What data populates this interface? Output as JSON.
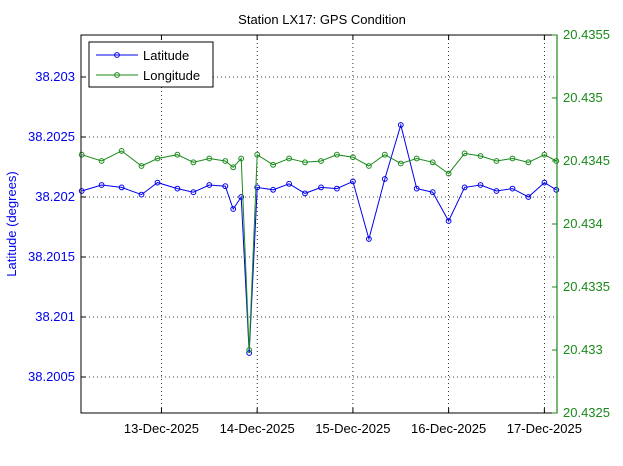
{
  "chart_data": {
    "type": "line",
    "title": "Station LX17: GPS Condition",
    "ylabel_left": "Latitude (degrees)",
    "ylabel_right": "",
    "xlim": [
      "2025-12-12T03:50",
      "2025-12-17T03:10"
    ],
    "x_ticks": [
      "13-Dec-2025",
      "14-Dec-2025",
      "15-Dec-2025",
      "16-Dec-2025",
      "17-Dec-2025"
    ],
    "x_tick_dates": [
      "2025-12-13",
      "2025-12-14",
      "2025-12-15",
      "2025-12-16",
      "2025-12-17"
    ],
    "y_left": {
      "lim": [
        38.2002,
        38.20335
      ],
      "ticks": [
        "38.2005",
        "38.201",
        "38.2015",
        "38.202",
        "38.2025",
        "38.203"
      ],
      "tick_values": [
        38.2005,
        38.201,
        38.2015,
        38.202,
        38.2025,
        38.203
      ],
      "color": "#0000ee"
    },
    "y_right": {
      "lim": [
        20.4325,
        20.4355
      ],
      "ticks": [
        "20.4325",
        "20.433",
        "20.4335",
        "20.434",
        "20.4345",
        "20.435",
        "20.4355"
      ],
      "tick_values": [
        20.4325,
        20.433,
        20.4335,
        20.434,
        20.4345,
        20.435,
        20.4355
      ],
      "color": "#1a8a1a"
    },
    "grid": true,
    "legend": "top-left",
    "series": [
      {
        "name": "Latitude",
        "axis": "left",
        "color": "#0000ee",
        "x": [
          "2025-12-12T04:00",
          "2025-12-12T09:00",
          "2025-12-12T14:00",
          "2025-12-12T19:00",
          "2025-12-12T23:00",
          "2025-12-13T04:00",
          "2025-12-13T08:00",
          "2025-12-13T12:00",
          "2025-12-13T16:00",
          "2025-12-13T18:00",
          "2025-12-13T20:00",
          "2025-12-13T22:00",
          "2025-12-14T00:00",
          "2025-12-14T04:00",
          "2025-12-14T08:00",
          "2025-12-14T12:00",
          "2025-12-14T16:00",
          "2025-12-14T20:00",
          "2025-12-15T00:00",
          "2025-12-15T04:00",
          "2025-12-15T08:00",
          "2025-12-15T12:00",
          "2025-12-15T16:00",
          "2025-12-15T20:00",
          "2025-12-16T00:00",
          "2025-12-16T04:00",
          "2025-12-16T08:00",
          "2025-12-16T12:00",
          "2025-12-16T16:00",
          "2025-12-16T20:00",
          "2025-12-17T00:00",
          "2025-12-17T03:00"
        ],
        "values": [
          38.20205,
          38.2021,
          38.20208,
          38.20202,
          38.20212,
          38.20207,
          38.20204,
          38.2021,
          38.20209,
          38.2019,
          38.202,
          38.2007,
          38.20208,
          38.20206,
          38.20211,
          38.20203,
          38.20208,
          38.20207,
          38.20213,
          38.20165,
          38.20215,
          38.2026,
          38.20207,
          38.20204,
          38.2018,
          38.20208,
          38.2021,
          38.20205,
          38.20207,
          38.202,
          38.20212,
          38.20206
        ]
      },
      {
        "name": "Longitude",
        "axis": "right",
        "color": "#1a8a1a",
        "x": [
          "2025-12-12T04:00",
          "2025-12-12T09:00",
          "2025-12-12T14:00",
          "2025-12-12T19:00",
          "2025-12-12T23:00",
          "2025-12-13T04:00",
          "2025-12-13T08:00",
          "2025-12-13T12:00",
          "2025-12-13T16:00",
          "2025-12-13T18:00",
          "2025-12-13T20:00",
          "2025-12-13T22:00",
          "2025-12-14T00:00",
          "2025-12-14T04:00",
          "2025-12-14T08:00",
          "2025-12-14T12:00",
          "2025-12-14T16:00",
          "2025-12-14T20:00",
          "2025-12-15T00:00",
          "2025-12-15T04:00",
          "2025-12-15T08:00",
          "2025-12-15T12:00",
          "2025-12-15T16:00",
          "2025-12-15T20:00",
          "2025-12-16T00:00",
          "2025-12-16T04:00",
          "2025-12-16T08:00",
          "2025-12-16T12:00",
          "2025-12-16T16:00",
          "2025-12-16T20:00",
          "2025-12-17T00:00",
          "2025-12-17T03:00"
        ],
        "values": [
          20.43455,
          20.4345,
          20.43458,
          20.43446,
          20.43452,
          20.43455,
          20.43449,
          20.43452,
          20.4345,
          20.43445,
          20.43452,
          20.433,
          20.43455,
          20.43447,
          20.43452,
          20.43449,
          20.4345,
          20.43455,
          20.43453,
          20.43446,
          20.43455,
          20.43448,
          20.43452,
          20.43449,
          20.4344,
          20.43456,
          20.43454,
          20.4345,
          20.43452,
          20.43449,
          20.43455,
          20.4345
        ]
      }
    ]
  }
}
